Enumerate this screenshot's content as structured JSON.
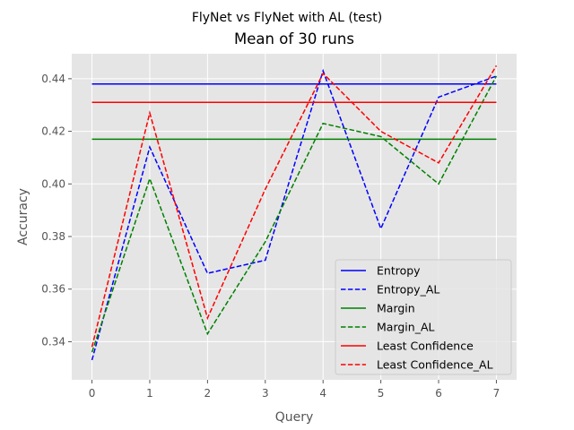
{
  "chart_data": {
    "type": "line",
    "suptitle": "FlyNet vs FlyNet with AL (test)",
    "title": "Mean of 30 runs",
    "xlabel": "Query",
    "ylabel": "Accuracy",
    "x": [
      0,
      1,
      2,
      3,
      4,
      5,
      6,
      7
    ],
    "xticks": [
      "0",
      "1",
      "2",
      "3",
      "4",
      "5",
      "6",
      "7"
    ],
    "yticks": [
      "0.34",
      "0.36",
      "0.38",
      "0.40",
      "0.42",
      "0.44"
    ],
    "xlim": [
      -0.35,
      7.35
    ],
    "ylim": [
      0.3255,
      0.4495
    ],
    "grid": true,
    "background": "#e5e5e5",
    "legend_position": "lower-right",
    "series": [
      {
        "name": "Entropy",
        "color": "#0000ff",
        "dash": "solid",
        "values": [
          0.438,
          0.438,
          0.438,
          0.438,
          0.438,
          0.438,
          0.438,
          0.438
        ]
      },
      {
        "name": "Entropy_AL",
        "color": "#0000ff",
        "dash": "dashed",
        "values": [
          0.333,
          0.414,
          0.366,
          0.371,
          0.443,
          0.383,
          0.433,
          0.441
        ]
      },
      {
        "name": "Margin",
        "color": "#008000",
        "dash": "solid",
        "values": [
          0.417,
          0.417,
          0.417,
          0.417,
          0.417,
          0.417,
          0.417,
          0.417
        ]
      },
      {
        "name": "Margin_AL",
        "color": "#008000",
        "dash": "dashed",
        "values": [
          0.336,
          0.402,
          0.343,
          0.378,
          0.423,
          0.418,
          0.4,
          0.441
        ]
      },
      {
        "name": "Least Confidence",
        "color": "#ff0000",
        "dash": "solid",
        "values": [
          0.431,
          0.431,
          0.431,
          0.431,
          0.431,
          0.431,
          0.431,
          0.431
        ]
      },
      {
        "name": "Least Confidence_AL",
        "color": "#ff0000",
        "dash": "dashed",
        "values": [
          0.338,
          0.427,
          0.349,
          0.398,
          0.442,
          0.42,
          0.408,
          0.445
        ]
      }
    ]
  }
}
